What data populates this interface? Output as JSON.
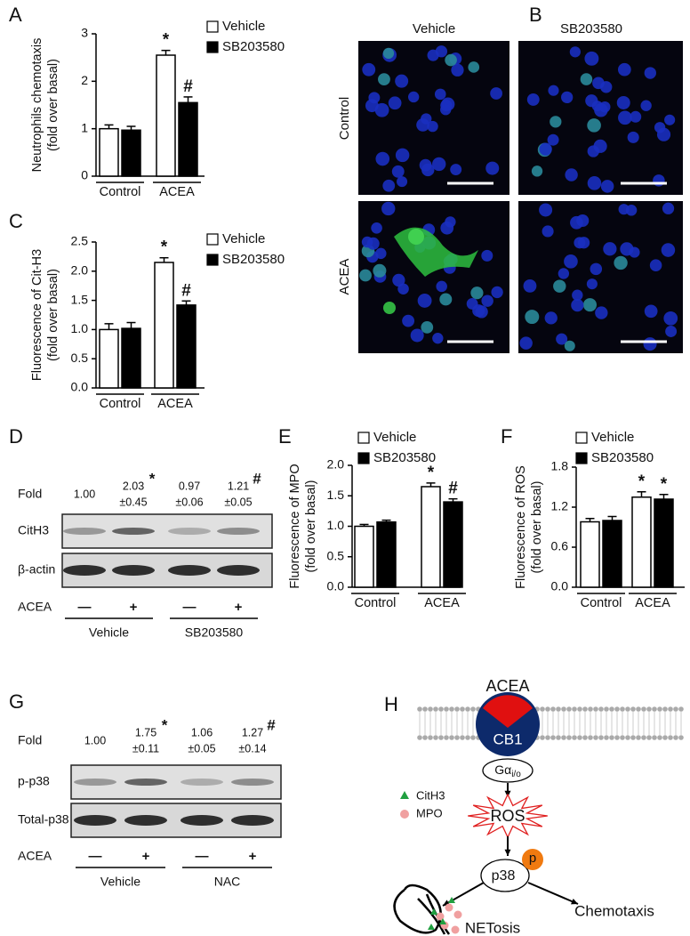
{
  "panel_labels": [
    "A",
    "B",
    "C",
    "D",
    "E",
    "F",
    "G",
    "H"
  ],
  "chart_data": [
    {
      "type": "bar",
      "ylabel": [
        "Neutrophils chemotaxis",
        "(fold over basal)"
      ],
      "categories": [
        "Control",
        "ACEA"
      ],
      "series": [
        {
          "name": "Vehicle",
          "color": "#ffffff",
          "values": [
            1.0,
            2.55
          ],
          "errors": [
            0.08,
            0.1
          ],
          "marks": [
            null,
            "*"
          ]
        },
        {
          "name": "SB203580",
          "color": "#000000",
          "values": [
            0.97,
            1.55
          ],
          "errors": [
            0.08,
            0.12
          ],
          "marks": [
            null,
            "#"
          ]
        }
      ],
      "ylim": [
        0,
        3
      ],
      "yticks": [
        0,
        1,
        2,
        3
      ]
    },
    {
      "type": "bar",
      "ylabel": [
        "Fluorescence of Cit-H3",
        "(fold over basal)"
      ],
      "categories": [
        "Control",
        "ACEA"
      ],
      "series": [
        {
          "name": "Vehicle",
          "color": "#ffffff",
          "values": [
            1.0,
            2.15
          ],
          "errors": [
            0.1,
            0.08
          ],
          "marks": [
            null,
            "*"
          ]
        },
        {
          "name": "SB203580",
          "color": "#000000",
          "values": [
            1.02,
            1.42
          ],
          "errors": [
            0.1,
            0.07
          ],
          "marks": [
            null,
            "#"
          ]
        }
      ],
      "ylim": [
        0,
        2.5
      ],
      "yticks": [
        {
          "value": 0,
          "label": "0.0"
        },
        0.5,
        {
          "value": 1,
          "label": "1.0"
        },
        1.5,
        {
          "value": 2,
          "label": "2.0"
        },
        2.5
      ]
    },
    {
      "type": "bar",
      "ylabel": [
        "Fluorescence of MPO",
        "(fold over basal)"
      ],
      "categories": [
        "Control",
        "ACEA"
      ],
      "series": [
        {
          "name": "Vehicle",
          "color": "#ffffff",
          "values": [
            1.0,
            1.65
          ],
          "errors": [
            0.03,
            0.06
          ],
          "marks": [
            null,
            "*"
          ]
        },
        {
          "name": "SB203580",
          "color": "#000000",
          "values": [
            1.07,
            1.4
          ],
          "errors": [
            0.03,
            0.05
          ],
          "marks": [
            null,
            "#"
          ]
        }
      ],
      "ylim": [
        0,
        2
      ],
      "yticks": [
        {
          "value": 0,
          "label": "0.0"
        },
        0.5,
        {
          "value": 1,
          "label": "1.0"
        },
        1.5,
        {
          "value": 2,
          "label": "2.0"
        }
      ]
    },
    {
      "type": "bar",
      "ylabel": [
        "Fluorescence of ROS",
        "(fold over basal)"
      ],
      "categories": [
        "Control",
        "ACEA"
      ],
      "series": [
        {
          "name": "Vehicle",
          "color": "#ffffff",
          "values": [
            0.98,
            1.35
          ],
          "errors": [
            0.05,
            0.08
          ],
          "marks": [
            null,
            "*"
          ]
        },
        {
          "name": "SB203580",
          "color": "#000000",
          "values": [
            1.0,
            1.32
          ],
          "errors": [
            0.06,
            0.07
          ],
          "marks": [
            null,
            "*"
          ]
        }
      ],
      "ylim": [
        0,
        1.8
      ],
      "yticks": [
        {
          "value": 0,
          "label": "0.0"
        },
        0.6,
        1.2,
        1.8
      ]
    }
  ],
  "micrographs": {
    "columns": [
      "Vehicle",
      "SB203580"
    ],
    "rows": [
      "Control",
      "ACEA"
    ]
  },
  "blot_d": {
    "fold_label": "Fold",
    "lanes": [
      {
        "fold": "1.00"
      },
      {
        "fold": "2.03",
        "sd": "±0.45",
        "mark": "*"
      },
      {
        "fold": "0.97",
        "sd": "±0.06"
      },
      {
        "fold": "1.21",
        "sd": "±0.05",
        "mark": "#"
      }
    ],
    "bands": [
      "CitH3",
      "β-actin"
    ],
    "treatment_label": "ACEA",
    "treatment": [
      "—",
      "+",
      "—",
      "+"
    ],
    "groups": [
      "Vehicle",
      "SB203580"
    ]
  },
  "blot_g": {
    "fold_label": "Fold",
    "lanes": [
      {
        "fold": "1.00"
      },
      {
        "fold": "1.75",
        "sd": "±0.11",
        "mark": "*"
      },
      {
        "fold": "1.06",
        "sd": "±0.05"
      },
      {
        "fold": "1.27",
        "sd": "±0.14",
        "mark": "#"
      }
    ],
    "bands": [
      "p-p38",
      "Total-p38"
    ],
    "treatment_label": "ACEA",
    "treatment": [
      "—",
      "+",
      "—",
      "+"
    ],
    "groups": [
      "Vehicle",
      "NAC"
    ]
  },
  "diagram": {
    "ligand": "ACEA",
    "receptor": "CB1",
    "g_protein": "Gα",
    "g_protein_sub": "i/o",
    "legend": [
      "CitH3",
      "MPO"
    ],
    "ros": "ROS",
    "kinase": "p38",
    "phospho": "p",
    "outputs": [
      "NETosis",
      "Chemotaxis"
    ]
  }
}
